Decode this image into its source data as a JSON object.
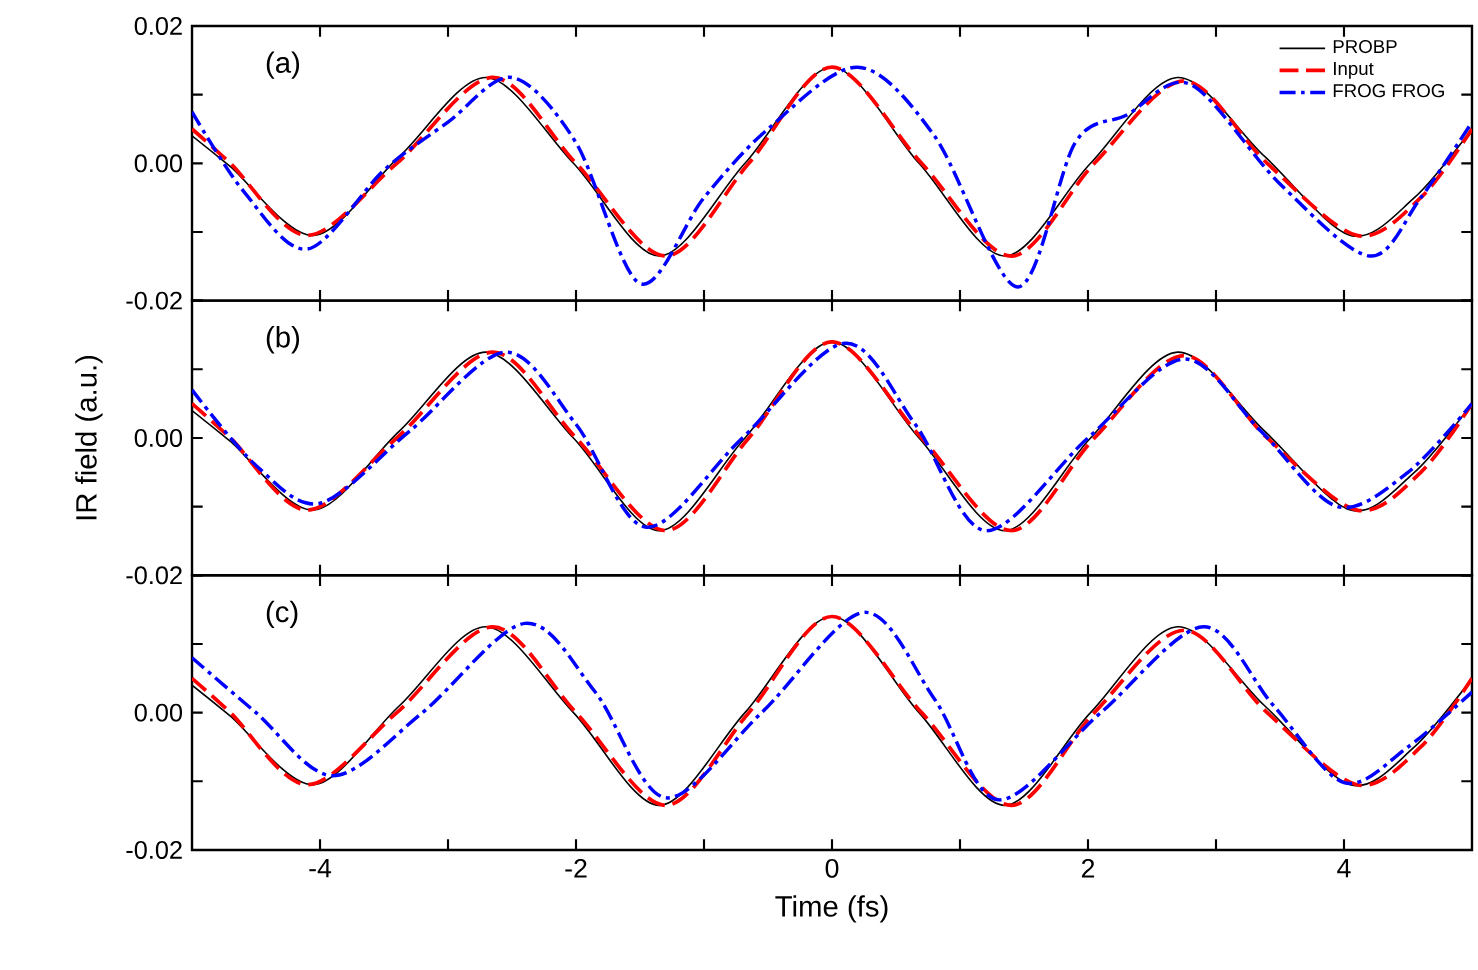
{
  "chart_data": [
    {
      "type": "line",
      "annotations": [
        "(a)"
      ],
      "xlim": [
        -5,
        5
      ],
      "ylim": [
        -0.02,
        0.02
      ],
      "xticks": [
        {
          "value": -4,
          "label": null
        },
        {
          "value": -3,
          "label": null
        },
        {
          "value": -2,
          "label": null
        },
        {
          "value": -1,
          "label": null
        },
        {
          "value": 0,
          "label": null
        },
        {
          "value": 1,
          "label": null
        },
        {
          "value": 2,
          "label": null
        },
        {
          "value": 3,
          "label": null
        },
        {
          "value": 4,
          "label": null
        }
      ],
      "yticks": [
        {
          "value": 0.02,
          "label": "0.02"
        },
        {
          "value": 0.01,
          "label": null
        },
        {
          "value": 0,
          "label": "0.00"
        },
        {
          "value": -0.01,
          "label": null
        },
        {
          "value": -0.02,
          "label": "-0.02"
        }
      ],
      "tick_labels": "y",
      "legend": "top right",
      "grid": false,
      "series": [
        {
          "name": "PROBP",
          "color": "#000000",
          "line_style": "solid",
          "x": [
            -5,
            -4.7,
            -4.05,
            -3.38,
            -2.7,
            -2.02,
            -1.35,
            -0.68,
            0,
            0.68,
            1.35,
            2.02,
            2.7,
            3.38,
            4.05,
            4.55,
            5
          ],
          "values": [
            0.004,
            -0.0005,
            -0.0105,
            0.001,
            0.0125,
            0.0,
            -0.0135,
            0.0,
            0.014,
            0.0,
            -0.0135,
            0.0,
            0.0125,
            0.001,
            -0.0105,
            -0.005,
            0.005
          ]
        },
        {
          "name": "Input",
          "color": "#ff0000",
          "line_style": "dashed",
          "x": [
            -5,
            -4.7,
            -4.1,
            -3.4,
            -2.65,
            -2.0,
            -1.3,
            -0.65,
            0.0,
            0.7,
            1.4,
            2.05,
            2.75,
            3.4,
            4.1,
            4.6,
            5
          ],
          "values": [
            0.005,
            0.0,
            -0.0105,
            0.0,
            0.0125,
            0.0,
            -0.0135,
            0.0,
            0.014,
            0.0,
            -0.0135,
            0.0,
            0.012,
            0.0,
            -0.0105,
            -0.005,
            0.005
          ]
        },
        {
          "name": "FROG FROG",
          "color": "#0000ff",
          "line_style": "dashdot",
          "x": [
            -5,
            -4.6,
            -4.1,
            -3.5,
            -3.0,
            -2.5,
            -2.0,
            -1.5,
            -1.0,
            -0.5,
            0.2,
            0.8,
            1.45,
            1.9,
            2.3,
            2.8,
            3.5,
            4.2,
            4.6,
            5
          ],
          "values": [
            0.0075,
            -0.004,
            -0.0125,
            -0.001,
            0.006,
            0.0125,
            0.003,
            -0.0175,
            -0.005,
            0.005,
            0.014,
            0.004,
            -0.018,
            0.003,
            0.007,
            0.0115,
            -0.003,
            -0.0135,
            -0.005,
            0.006
          ]
        }
      ]
    },
    {
      "type": "line",
      "annotations": [
        "(b)"
      ],
      "ylabel": "IR field (a.u.)",
      "xlim": [
        -5,
        5
      ],
      "ylim": [
        -0.02,
        0.02
      ],
      "xticks": [
        {
          "value": -4,
          "label": null
        },
        {
          "value": -3,
          "label": null
        },
        {
          "value": -2,
          "label": null
        },
        {
          "value": -1,
          "label": null
        },
        {
          "value": 0,
          "label": null
        },
        {
          "value": 1,
          "label": null
        },
        {
          "value": 2,
          "label": null
        },
        {
          "value": 3,
          "label": null
        },
        {
          "value": 4,
          "label": null
        }
      ],
      "yticks": [
        {
          "value": 0.02,
          "label": null
        },
        {
          "value": 0.01,
          "label": null
        },
        {
          "value": 0,
          "label": "0.00"
        },
        {
          "value": -0.01,
          "label": null
        },
        {
          "value": -0.02,
          "label": "-0.02"
        }
      ],
      "tick_labels": "y",
      "grid": false,
      "series": [
        {
          "color": "#000000",
          "line_style": "solid",
          "x": [
            -5,
            -4.7,
            -4.05,
            -3.38,
            -2.7,
            -2.02,
            -1.35,
            -0.68,
            0,
            0.68,
            1.35,
            2.02,
            2.7,
            3.38,
            4.05,
            4.55,
            5
          ],
          "values": [
            0.004,
            -0.0005,
            -0.0105,
            0.001,
            0.0125,
            0.0,
            -0.0135,
            0.0,
            0.014,
            0.0,
            -0.0135,
            0.0,
            0.0125,
            0.001,
            -0.0105,
            -0.005,
            0.005
          ]
        },
        {
          "color": "#ff0000",
          "line_style": "dashed",
          "x": [
            -5,
            -4.7,
            -4.1,
            -3.4,
            -2.65,
            -2.0,
            -1.3,
            -0.65,
            0.0,
            0.7,
            1.4,
            2.05,
            2.75,
            3.4,
            4.1,
            4.6,
            5
          ],
          "values": [
            0.005,
            0.0,
            -0.0105,
            0.0,
            0.0125,
            0.0,
            -0.0135,
            0.0,
            0.014,
            0.0,
            -0.0135,
            0.0,
            0.012,
            0.0,
            -0.0105,
            -0.005,
            0.005
          ]
        },
        {
          "color": "#0000ff",
          "line_style": "dashdot",
          "x": [
            -5,
            -4.5,
            -4.0,
            -3.3,
            -2.55,
            -2.0,
            -1.45,
            -0.7,
            0.1,
            0.65,
            1.2,
            2.0,
            2.75,
            3.35,
            3.95,
            4.5,
            5
          ],
          "values": [
            0.007,
            -0.004,
            -0.0095,
            0.001,
            0.0125,
            0.002,
            -0.013,
            0.0,
            0.0138,
            0.002,
            -0.0135,
            0.0,
            0.0115,
            0.001,
            -0.01,
            -0.005,
            0.005
          ]
        }
      ]
    },
    {
      "type": "line",
      "annotations": [
        "(c)"
      ],
      "xlabel": "Time (fs)",
      "xlim": [
        -5,
        5
      ],
      "ylim": [
        -0.02,
        0.02
      ],
      "xticks": [
        -4,
        {
          "value": -3,
          "label": null
        },
        -2,
        {
          "value": -1,
          "label": null
        },
        0,
        {
          "value": 1,
          "label": null
        },
        2,
        {
          "value": 3,
          "label": null
        },
        4
      ],
      "yticks": [
        {
          "value": 0.02,
          "label": null
        },
        {
          "value": 0.01,
          "label": null
        },
        {
          "value": 0,
          "label": "0.00"
        },
        {
          "value": -0.01,
          "label": null
        },
        {
          "value": -0.02,
          "label": "-0.02"
        }
      ],
      "grid": false,
      "series": [
        {
          "color": "#000000",
          "line_style": "solid",
          "x": [
            -5,
            -4.7,
            -4.05,
            -3.38,
            -2.7,
            -2.02,
            -1.35,
            -0.68,
            0,
            0.68,
            1.35,
            2.02,
            2.7,
            3.38,
            4.05,
            4.55,
            5
          ],
          "values": [
            0.004,
            -0.0005,
            -0.0105,
            0.001,
            0.0125,
            0.0,
            -0.0135,
            0.0,
            0.014,
            0.0,
            -0.0135,
            0.0,
            0.0125,
            0.001,
            -0.0105,
            -0.005,
            0.005
          ]
        },
        {
          "color": "#ff0000",
          "line_style": "dashed",
          "x": [
            -5,
            -4.7,
            -4.1,
            -3.4,
            -2.65,
            -2.0,
            -1.3,
            -0.65,
            0.0,
            0.7,
            1.4,
            2.05,
            2.75,
            3.4,
            4.1,
            4.6,
            5
          ],
          "values": [
            0.005,
            0.0,
            -0.0105,
            0.0,
            0.0125,
            0.0,
            -0.0135,
            0.0,
            0.014,
            0.0,
            -0.0135,
            0.0,
            0.012,
            0.0,
            -0.0105,
            -0.005,
            0.005
          ]
        },
        {
          "color": "#0000ff",
          "line_style": "dashdot",
          "x": [
            -5,
            -4.5,
            -3.9,
            -3.2,
            -2.4,
            -1.85,
            -1.3,
            -0.55,
            0.25,
            0.8,
            1.3,
            2.1,
            2.9,
            3.45,
            4.0,
            4.5,
            5
          ],
          "values": [
            0.008,
            0.0,
            -0.0092,
            0.0,
            0.013,
            0.003,
            -0.0124,
            0.0,
            0.0146,
            0.002,
            -0.0127,
            0.0,
            0.0125,
            0.001,
            -0.0102,
            -0.005,
            0.003
          ]
        }
      ]
    }
  ]
}
